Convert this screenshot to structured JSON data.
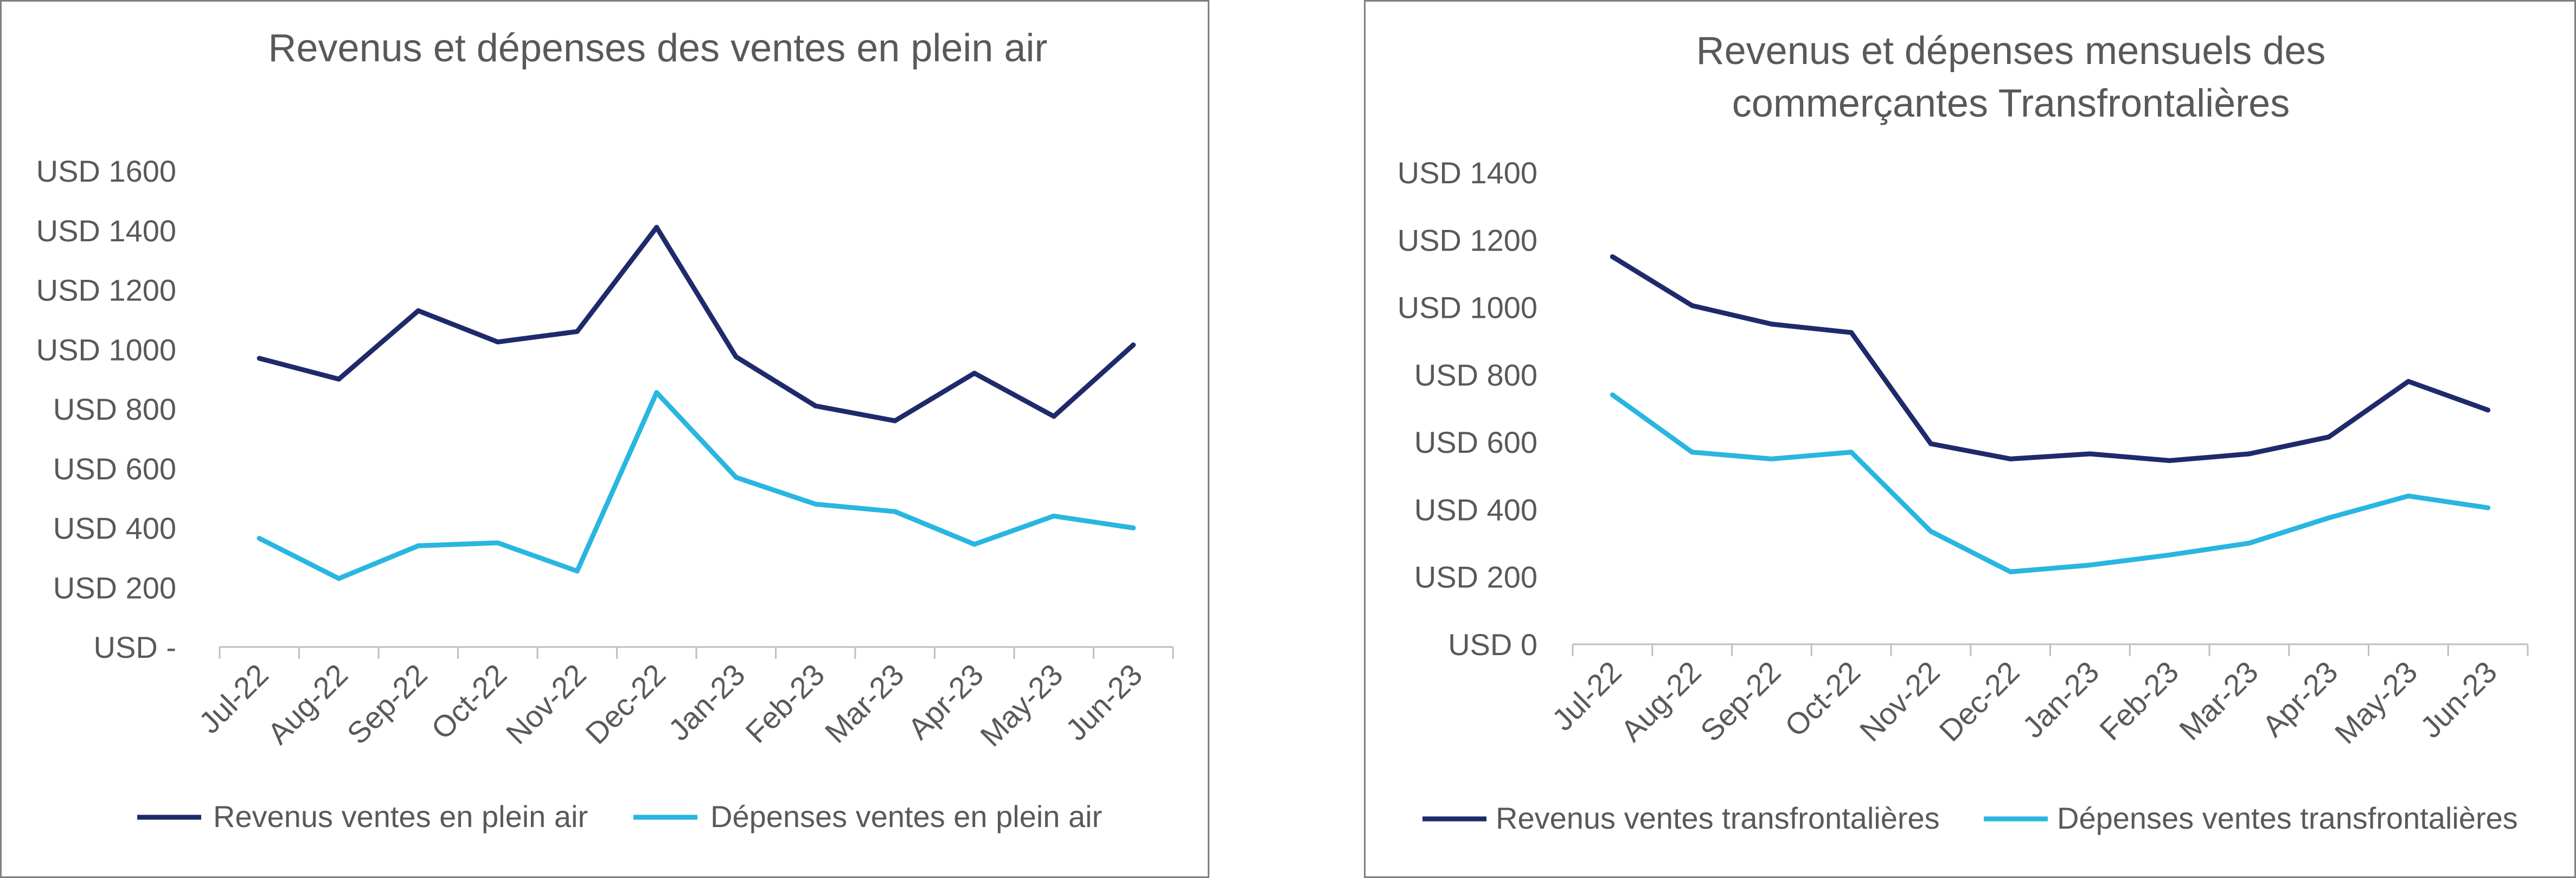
{
  "chart_data": [
    {
      "type": "line",
      "title": "Revenus et dépenses des ventes en plein air",
      "categories": [
        "Jul-22",
        "Aug-22",
        "Sep-22",
        "Oct-22",
        "Nov-22",
        "Dec-22",
        "Jan-23",
        "Feb-23",
        "Mar-23",
        "Apr-23",
        "May-23",
        "Jun-23"
      ],
      "y_ticks": [
        "USD  1600",
        "USD  1400",
        "USD  1200",
        "USD  1000",
        "USD 800",
        "USD 600",
        "USD 400",
        "USD 200",
        "USD -"
      ],
      "ylim": [
        0,
        1600
      ],
      "grid": false,
      "legend_position": "bottom",
      "series": [
        {
          "name": "Revenus ventes en plein air",
          "color": "#1f2a6b",
          "values": [
            970,
            900,
            1130,
            1025,
            1060,
            1410,
            975,
            810,
            760,
            920,
            775,
            1015
          ]
        },
        {
          "name": "Dépenses ventes en plein air",
          "color": "#29b6e0",
          "values": [
            365,
            230,
            340,
            350,
            255,
            855,
            570,
            480,
            455,
            345,
            440,
            400
          ]
        }
      ]
    },
    {
      "type": "line",
      "title": [
        "Revenus et dépenses mensuels des",
        "commerçantes Transfrontalières"
      ],
      "categories": [
        "Jul-22",
        "Aug-22",
        "Sep-22",
        "Oct-22",
        "Nov-22",
        "Dec-22",
        "Jan-23",
        "Feb-23",
        "Mar-23",
        "Apr-23",
        "May-23",
        "Jun-23"
      ],
      "y_ticks": [
        "USD  1400",
        "USD  1200",
        "USD  1000",
        "USD 800",
        "USD 600",
        "USD 400",
        "USD 200",
        "USD 0"
      ],
      "ylim": [
        0,
        1400
      ],
      "grid": false,
      "legend_position": "bottom",
      "series": [
        {
          "name": "Revenus ventes transfrontalières",
          "color": "#1f2a6b",
          "values": [
            1150,
            1005,
            950,
            925,
            595,
            550,
            565,
            545,
            565,
            615,
            780,
            695
          ]
        },
        {
          "name": "Dépenses ventes transfrontalières",
          "color": "#29b6e0",
          "values": [
            740,
            570,
            550,
            570,
            335,
            215,
            235,
            265,
            300,
            375,
            440,
            405
          ]
        }
      ]
    }
  ]
}
